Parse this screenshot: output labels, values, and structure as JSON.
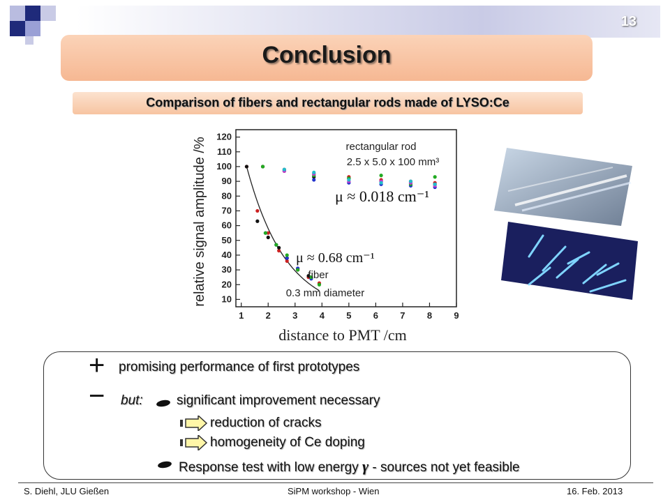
{
  "slide_number": "13",
  "title": "Conclusion",
  "subtitle": "Comparison of fibers and rectangular rods made of LYSO:Ce",
  "chart_data": {
    "type": "scatter",
    "xlabel": "distance to PMT /cm",
    "ylabel": "relative signal amplitude /%",
    "xlim": [
      0.8,
      9
    ],
    "ylim": [
      5,
      125
    ],
    "xticks": [
      1,
      2,
      3,
      4,
      5,
      6,
      7,
      8,
      9
    ],
    "yticks": [
      10,
      20,
      30,
      40,
      50,
      60,
      70,
      80,
      90,
      100,
      110,
      120
    ],
    "annotations": {
      "rod_label_1": "rectangular rod",
      "rod_label_2": "2.5 x 5.0 x 100 mm³",
      "rod_mu": "μ ≈  0.018 cm⁻¹",
      "fiber_mu": "μ ≈  0.68 cm⁻¹",
      "fiber_label_1": "fiber",
      "fiber_label_2": "0.3 mm diameter"
    },
    "series": [
      {
        "color": "#cc2222",
        "points": [
          [
            1.2,
            100
          ],
          [
            1.6,
            70
          ],
          [
            2.0,
            55
          ],
          [
            2.4,
            43
          ],
          [
            2.7,
            36
          ],
          [
            3.1,
            30
          ],
          [
            3.5,
            25
          ],
          [
            3.9,
            21
          ],
          [
            1.8,
            100
          ],
          [
            2.6,
            98
          ],
          [
            3.7,
            95
          ],
          [
            5.0,
            93
          ],
          [
            6.2,
            91
          ],
          [
            7.3,
            90
          ],
          [
            8.2,
            89
          ]
        ]
      },
      {
        "color": "#111111",
        "points": [
          [
            1.2,
            100
          ],
          [
            1.6,
            63
          ],
          [
            2.0,
            52
          ],
          [
            2.4,
            45
          ],
          [
            2.7,
            38
          ],
          [
            3.1,
            31
          ],
          [
            3.5,
            26
          ],
          [
            1.8,
            100
          ],
          [
            2.6,
            97
          ],
          [
            3.7,
            93
          ],
          [
            5.0,
            92
          ],
          [
            6.2,
            90
          ],
          [
            7.3,
            89
          ],
          [
            8.2,
            88
          ]
        ]
      },
      {
        "color": "#2233cc",
        "points": [
          [
            1.9,
            55
          ],
          [
            2.3,
            47
          ],
          [
            2.7,
            38
          ],
          [
            3.1,
            31
          ],
          [
            3.6,
            24
          ],
          [
            3.7,
            91
          ],
          [
            5.0,
            89
          ],
          [
            6.2,
            88
          ],
          [
            7.3,
            87
          ],
          [
            8.2,
            86
          ]
        ]
      },
      {
        "color": "#22aa22",
        "points": [
          [
            1.9,
            55
          ],
          [
            2.3,
            47
          ],
          [
            2.7,
            40
          ],
          [
            3.1,
            30
          ],
          [
            3.6,
            25
          ],
          [
            3.9,
            20
          ],
          [
            1.8,
            100
          ],
          [
            3.7,
            94
          ],
          [
            5.0,
            92
          ],
          [
            6.2,
            94
          ],
          [
            7.3,
            88
          ],
          [
            8.2,
            93
          ]
        ]
      },
      {
        "color": "#cc33cc",
        "points": [
          [
            2.6,
            97
          ],
          [
            3.7,
            95
          ],
          [
            5.0,
            90
          ],
          [
            6.2,
            90
          ],
          [
            7.3,
            89
          ],
          [
            8.2,
            87
          ]
        ]
      },
      {
        "color": "#22bbcc",
        "points": [
          [
            2.6,
            98
          ],
          [
            3.7,
            96
          ],
          [
            5.0,
            91
          ],
          [
            6.2,
            89
          ],
          [
            7.3,
            90
          ],
          [
            8.2,
            88
          ]
        ]
      }
    ],
    "fits": [
      {
        "type": "exp",
        "amplitude": 100,
        "mu": 0.68,
        "x0": 1.2,
        "x_start": 1.2,
        "x_end": 3.9
      }
    ]
  },
  "conclusions": {
    "plus_text": "promising performance of first prototypes",
    "but_label": "but:",
    "minus_text": "significant improvement necessary",
    "sub1": "reduction of cracks",
    "sub2": "homogeneity of Ce doping",
    "response_pre": "Response test with low energy",
    "gamma": "γ",
    "response_post": "- sources not yet feasible"
  },
  "footer": {
    "left": "S. Diehl, JLU Gießen",
    "center": "SiPM workshop - Wien",
    "right": "16.  Feb. 2013"
  },
  "colors": {
    "title_box": "#f6b893",
    "subtitle_box": "#f7c4a1",
    "deco_navy": "#1f2a7a",
    "deco_light": "#c9cbe6"
  }
}
